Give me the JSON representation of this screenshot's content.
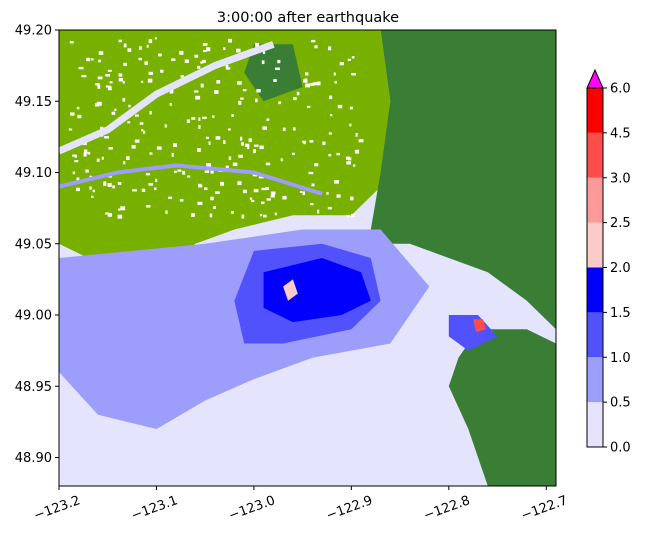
{
  "chart_data": {
    "type": "heatmap",
    "title": "3:00:00 after earthquake",
    "xlabel": "",
    "ylabel": "",
    "xlim": [
      -123.2,
      -122.69
    ],
    "ylim": [
      48.88,
      49.2
    ],
    "x_ticks": [
      -123.2,
      -123.1,
      -123.0,
      -122.9,
      -122.8,
      -122.7
    ],
    "x_tick_labels": [
      "−123.2",
      "−123.1",
      "−123.0",
      "−122.9",
      "−122.8",
      "−122.7"
    ],
    "y_ticks": [
      48.9,
      48.95,
      49.0,
      49.05,
      49.1,
      49.15,
      49.2
    ],
    "y_tick_labels": [
      "48.90",
      "48.95",
      "49.00",
      "49.05",
      "49.10",
      "49.15",
      "49.20"
    ],
    "colorbar": {
      "min": 0.0,
      "max": 6.0,
      "extend": "max",
      "ticks": [
        0.0,
        0.5,
        1.0,
        1.5,
        2.0,
        2.5,
        3.0,
        4.5,
        6.0
      ],
      "tick_labels": [
        "0.0",
        "0.5",
        "1.0",
        "1.5",
        "2.0",
        "2.5",
        "3.0",
        "4.5",
        "6.0"
      ],
      "bins": [
        {
          "from": 0.0,
          "to": 0.5,
          "color": "#e4e4fc"
        },
        {
          "from": 0.5,
          "to": 1.0,
          "color": "#9d9dfb"
        },
        {
          "from": 1.0,
          "to": 1.5,
          "color": "#5252fc"
        },
        {
          "from": 1.5,
          "to": 2.0,
          "color": "#0000fc"
        },
        {
          "from": 2.0,
          "to": 2.5,
          "color": "#fccaca"
        },
        {
          "from": 2.5,
          "to": 3.0,
          "color": "#fc9a9a"
        },
        {
          "from": 3.0,
          "to": 4.5,
          "color": "#fc4c4c"
        },
        {
          "from": 4.5,
          "to": 6.0,
          "color": "#fc0000"
        }
      ],
      "over_color": "#ff00ff"
    },
    "land_colors": {
      "lowland": "#78b000",
      "upland": "#3a7e36",
      "urban_speckle": "#ffffff"
    },
    "regions": [
      {
        "name": "urban-lowland",
        "level": "land-low",
        "polygon": [
          [
            -123.2,
            49.2
          ],
          [
            -122.87,
            49.2
          ],
          [
            -122.86,
            49.15
          ],
          [
            -122.85,
            49.12
          ],
          [
            -122.87,
            49.09
          ],
          [
            -122.9,
            49.07
          ],
          [
            -122.96,
            49.07
          ],
          [
            -123.02,
            49.06
          ],
          [
            -123.06,
            49.05
          ],
          [
            -123.1,
            49.03
          ],
          [
            -123.14,
            49.03
          ],
          [
            -123.2,
            49.05
          ]
        ]
      },
      {
        "name": "upland-northeast",
        "level": "land-high",
        "polygon": [
          [
            -122.87,
            49.2
          ],
          [
            -122.69,
            49.2
          ],
          [
            -122.69,
            48.99
          ],
          [
            -122.72,
            49.01
          ],
          [
            -122.76,
            49.03
          ],
          [
            -122.8,
            49.04
          ],
          [
            -122.84,
            49.05
          ],
          [
            -122.86,
            49.05
          ],
          [
            -122.88,
            49.06
          ],
          [
            -122.87,
            49.1
          ],
          [
            -122.86,
            49.15
          ]
        ]
      },
      {
        "name": "upland-patch-north",
        "level": "land-high",
        "polygon": [
          [
            -123.0,
            49.19
          ],
          [
            -122.96,
            49.19
          ],
          [
            -122.95,
            49.16
          ],
          [
            -122.99,
            49.15
          ],
          [
            -123.01,
            49.17
          ]
        ]
      },
      {
        "name": "point-roberts",
        "level": "land-high",
        "polygon": [
          [
            -123.06,
            49.03
          ],
          [
            -123.05,
            48.99
          ],
          [
            -123.03,
            48.985
          ],
          [
            -123.02,
            49.0
          ],
          [
            -123.03,
            49.02
          ]
        ]
      },
      {
        "name": "birch-bay-headland",
        "level": "land-high",
        "polygon": [
          [
            -122.77,
            48.99
          ],
          [
            -122.72,
            48.99
          ],
          [
            -122.69,
            48.98
          ],
          [
            -122.69,
            48.88
          ],
          [
            -122.76,
            48.88
          ],
          [
            -122.78,
            48.92
          ],
          [
            -122.8,
            48.95
          ],
          [
            -122.79,
            48.97
          ]
        ]
      },
      {
        "name": "bay-shallow",
        "level": 0.8,
        "polygon": [
          [
            -123.2,
            49.04
          ],
          [
            -123.05,
            49.05
          ],
          [
            -122.95,
            49.06
          ],
          [
            -122.87,
            49.06
          ],
          [
            -122.82,
            49.02
          ],
          [
            -122.86,
            48.98
          ],
          [
            -122.94,
            48.97
          ],
          [
            -123.0,
            48.955
          ],
          [
            -123.05,
            48.94
          ],
          [
            -123.1,
            48.92
          ],
          [
            -123.16,
            48.93
          ],
          [
            -123.2,
            48.96
          ]
        ]
      },
      {
        "name": "bay-mid",
        "level": 1.3,
        "polygon": [
          [
            -123.0,
            49.045
          ],
          [
            -122.93,
            49.05
          ],
          [
            -122.88,
            49.04
          ],
          [
            -122.87,
            49.01
          ],
          [
            -122.9,
            48.99
          ],
          [
            -122.97,
            48.98
          ],
          [
            -123.01,
            48.98
          ],
          [
            -123.02,
            49.01
          ]
        ]
      },
      {
        "name": "bay-deep",
        "level": 1.8,
        "polygon": [
          [
            -122.99,
            49.03
          ],
          [
            -122.93,
            49.04
          ],
          [
            -122.89,
            49.03
          ],
          [
            -122.88,
            49.01
          ],
          [
            -122.91,
            49.0
          ],
          [
            -122.96,
            48.995
          ],
          [
            -122.99,
            49.005
          ]
        ]
      },
      {
        "name": "semiahmoo-mid",
        "level": 1.3,
        "polygon": [
          [
            -122.8,
            49.0
          ],
          [
            -122.77,
            49.0
          ],
          [
            -122.75,
            48.985
          ],
          [
            -122.78,
            48.975
          ],
          [
            -122.8,
            48.985
          ]
        ]
      },
      {
        "name": "semiahmoo-hot",
        "level": 3.5,
        "polygon": [
          [
            -122.775,
            48.997
          ],
          [
            -122.765,
            48.997
          ],
          [
            -122.762,
            48.99
          ],
          [
            -122.772,
            48.988
          ]
        ]
      },
      {
        "name": "bay-hot-spot",
        "level": 2.2,
        "polygon": [
          [
            -122.97,
            49.02
          ],
          [
            -122.96,
            49.025
          ],
          [
            -122.955,
            49.015
          ],
          [
            -122.965,
            49.01
          ]
        ]
      }
    ]
  }
}
